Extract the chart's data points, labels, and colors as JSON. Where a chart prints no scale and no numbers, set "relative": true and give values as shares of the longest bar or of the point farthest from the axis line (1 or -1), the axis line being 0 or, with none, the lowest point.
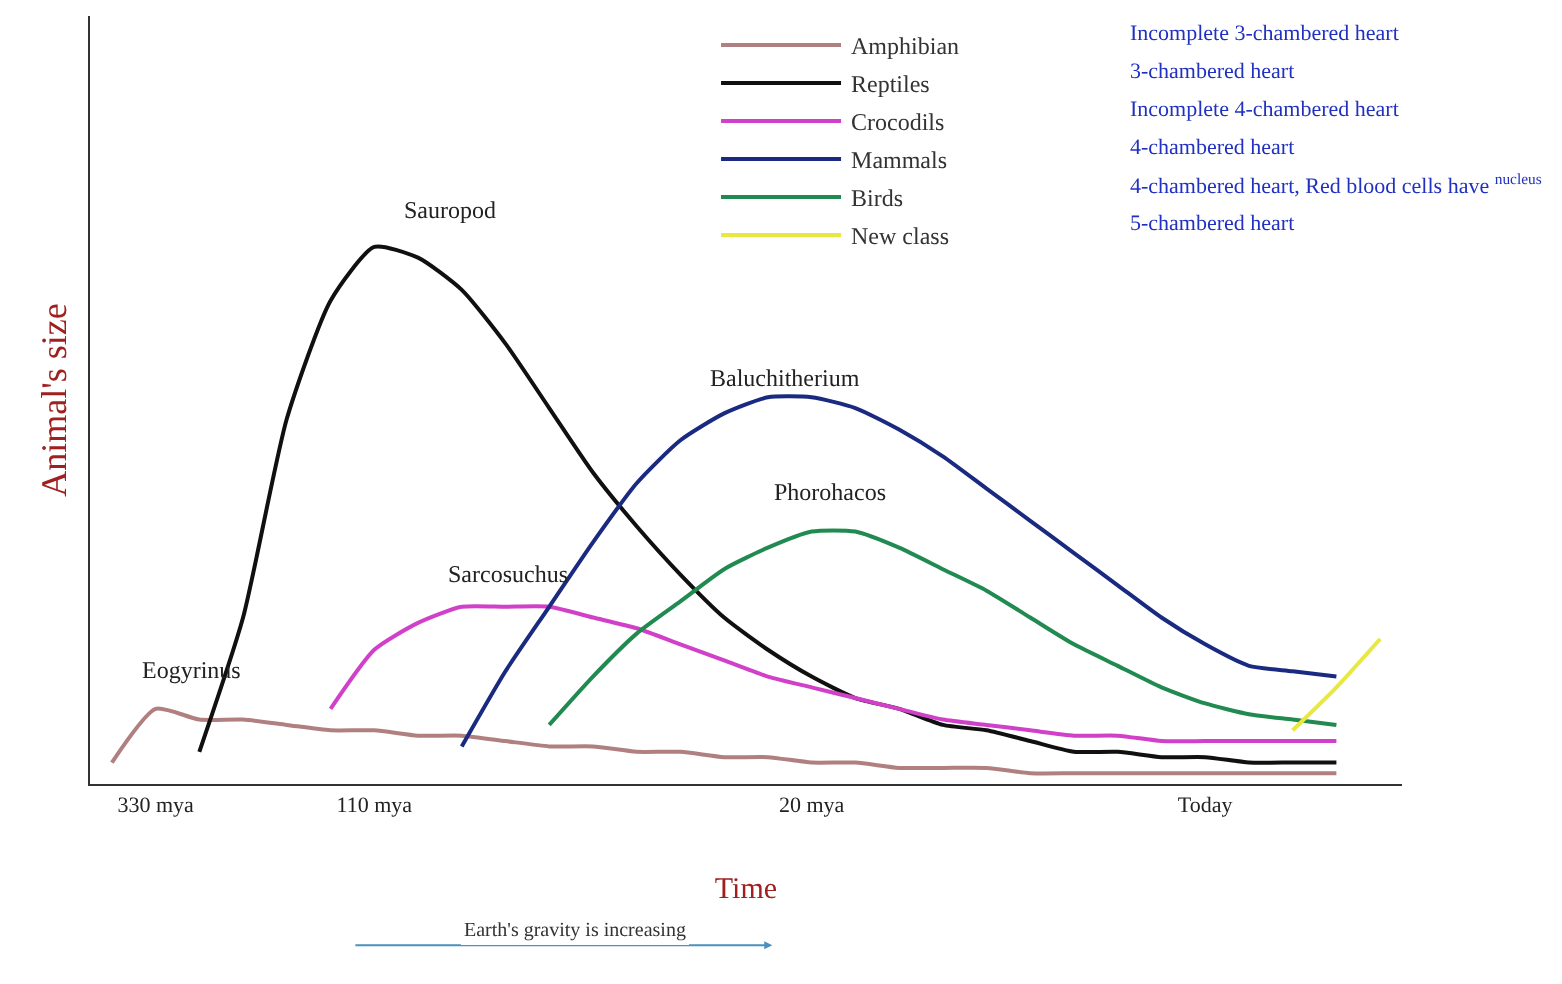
{
  "chart_data": {
    "type": "line",
    "relative": true,
    "xlabel": "Time",
    "ylabel": "Animal's size",
    "categories": [
      null,
      "330 mya",
      null,
      null,
      null,
      null,
      "110 mya",
      null,
      null,
      null,
      null,
      null,
      null,
      null,
      null,
      null,
      "20 mya",
      null,
      null,
      null,
      null,
      null,
      null,
      null,
      null,
      "Today",
      null,
      null,
      null,
      null
    ],
    "legend": "top right",
    "line_style": "solid",
    "series": [
      {
        "name": "Amphibian",
        "color": "#b08080",
        "values": [
          0.04,
          0.14,
          0.12,
          0.12,
          0.11,
          0.1,
          0.1,
          0.09,
          0.09,
          0.08,
          0.07,
          0.07,
          0.06,
          0.06,
          0.05,
          0.05,
          0.04,
          0.04,
          0.03,
          0.03,
          0.03,
          0.02,
          0.02,
          0.02,
          0.02,
          0.02,
          0.02,
          0.02,
          0.02,
          null
        ]
      },
      {
        "name": "Reptiles",
        "color": "#101010",
        "values": [
          null,
          null,
          0.06,
          0.31,
          0.68,
          0.9,
          1,
          0.98,
          0.92,
          0.82,
          0.7,
          0.58,
          0.48,
          0.39,
          0.31,
          0.25,
          0.2,
          0.16,
          0.14,
          0.11,
          0.1,
          0.08,
          0.06,
          0.06,
          0.05,
          0.05,
          0.04,
          0.04,
          0.04,
          null
        ]
      },
      {
        "name": "Crocodils",
        "color": "#d040c8",
        "values": [
          null,
          null,
          null,
          null,
          null,
          0.14,
          0.25,
          0.3,
          0.33,
          0.33,
          0.33,
          0.31,
          0.29,
          0.26,
          0.23,
          0.2,
          0.18,
          0.16,
          0.14,
          0.12,
          0.11,
          0.1,
          0.09,
          0.09,
          0.08,
          0.08,
          0.08,
          0.08,
          0.08,
          null
        ]
      },
      {
        "name": "Mammals",
        "color": "#1a2a80",
        "values": [
          null,
          null,
          null,
          null,
          null,
          null,
          null,
          null,
          0.07,
          0.21,
          0.33,
          0.45,
          0.56,
          0.64,
          0.69,
          0.72,
          0.72,
          0.7,
          0.66,
          0.61,
          0.55,
          0.49,
          0.43,
          0.37,
          0.31,
          0.26,
          0.22,
          0.21,
          0.2,
          null
        ]
      },
      {
        "name": "Birds",
        "color": "#208a50",
        "values": [
          null,
          null,
          null,
          null,
          null,
          null,
          null,
          null,
          null,
          null,
          0.11,
          0.2,
          0.28,
          0.34,
          0.4,
          0.44,
          0.47,
          0.47,
          0.44,
          0.4,
          0.36,
          0.31,
          0.26,
          0.22,
          0.18,
          0.15,
          0.13,
          0.12,
          0.11,
          null
        ]
      },
      {
        "name": "New class",
        "color": "#e8e840",
        "values": [
          null,
          null,
          null,
          null,
          null,
          null,
          null,
          null,
          null,
          null,
          null,
          null,
          null,
          null,
          null,
          null,
          null,
          null,
          null,
          null,
          null,
          null,
          null,
          null,
          null,
          null,
          null,
          0.1,
          0.18,
          0.27
        ]
      }
    ],
    "annotations": [
      "Eogyrinus",
      "Sauropod",
      "Sarcosuchus",
      "Baluchitherium",
      "Phorohacos",
      "Incomplete 3-chambered heart",
      "3-chambered heart",
      "Incomplete 4-chambered heart",
      "4-chambered heart",
      "4-chambered heart, Red blood cells have $^{nucleus}$",
      "5-chambered heart",
      "Earth's gravity is increasing"
    ]
  }
}
